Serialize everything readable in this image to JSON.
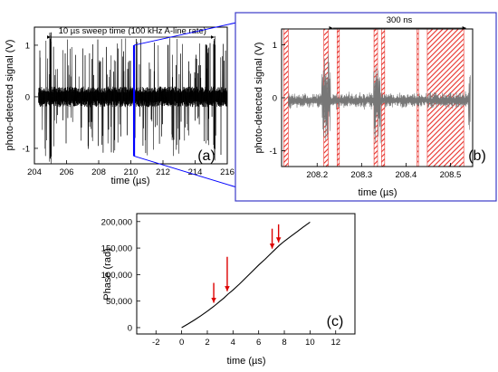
{
  "chart_data": [
    {
      "panel": "(a)",
      "type": "line",
      "xlabel": "time (µs)",
      "ylabel": "photo-detected signal (V)",
      "xlim": [
        204,
        216
      ],
      "ylim": [
        -1.3,
        1.35
      ],
      "x_ticks": [
        "204",
        "206",
        "208",
        "210",
        "212",
        "214",
        "216"
      ],
      "y_ticks": [
        "-1",
        "0",
        "1"
      ],
      "annotation": "10 µs sweep time (100 kHz A-line rate)",
      "annotation_span": [
        205.0,
        215.2
      ],
      "highlight_x": 210.2,
      "highlight_color": "#0000ff",
      "series_color": "#000000"
    },
    {
      "panel": "(b)",
      "type": "line",
      "xlabel": "time (µs)",
      "ylabel": "photo-detected signal (V)",
      "xlim": [
        208.12,
        208.55
      ],
      "ylim": [
        -1.3,
        1.3
      ],
      "x_ticks": [
        "208.2",
        "208.3",
        "208.4",
        "208.5"
      ],
      "y_ticks": [
        "-1",
        "0",
        "1"
      ],
      "annotation": "300 ns",
      "annotation_span": [
        208.235,
        208.535
      ],
      "shaded_regions": [
        [
          208.125,
          208.135
        ],
        [
          208.215,
          208.225
        ],
        [
          208.245,
          208.25
        ],
        [
          208.328,
          208.336
        ],
        [
          208.345,
          208.352
        ],
        [
          208.425,
          208.428
        ],
        [
          208.448,
          208.53
        ]
      ],
      "shade_color": "#e8302a",
      "series_color": "#777777"
    },
    {
      "panel": "(c)",
      "type": "line",
      "xlabel": "time (µs)",
      "ylabel": "Phase (rad)",
      "xlim": [
        -3.5,
        13.5
      ],
      "ylim": [
        -12000,
        215000
      ],
      "x_ticks": [
        "-2",
        "0",
        "2",
        "4",
        "6",
        "8",
        "10",
        "12"
      ],
      "y_ticks": [
        "0",
        "50,000",
        "100,000",
        "150,000",
        "200,000"
      ],
      "x": [
        0,
        0.5,
        1,
        1.5,
        2,
        2.5,
        3,
        3.3,
        3.6,
        4,
        4.5,
        5,
        5.5,
        6,
        6.5,
        7,
        7.3,
        7.6,
        8,
        8.5,
        9,
        9.5,
        10
      ],
      "y": [
        0,
        7000,
        14500,
        22500,
        31000,
        40000,
        50000,
        56000,
        63000,
        71000,
        82000,
        94000,
        106000,
        118000,
        129000,
        141000,
        148000,
        155000,
        163000,
        172000,
        181000,
        190000,
        199000
      ],
      "arrows_x": [
        2.5,
        3.55,
        7.05,
        7.55
      ],
      "arrow_color": "#dd0000",
      "series_color": "#000000"
    }
  ]
}
